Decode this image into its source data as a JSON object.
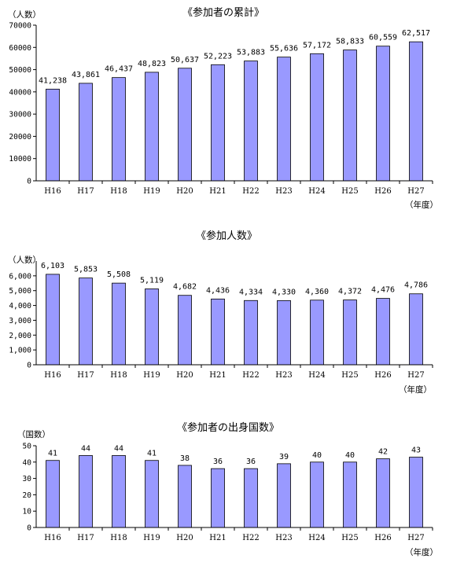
{
  "colors": {
    "bar_fill": "#9999ff",
    "bar_stroke": "#000000",
    "axis": "#000000"
  },
  "chart_data": [
    {
      "type": "bar",
      "title": "《参加者の累計》",
      "ylabel": "（人数）",
      "xlabel": "（年度）",
      "categories": [
        "H16",
        "H17",
        "H18",
        "H19",
        "H20",
        "H21",
        "H22",
        "H23",
        "H24",
        "H25",
        "H26",
        "H27"
      ],
      "values": [
        41238,
        43861,
        46437,
        48823,
        50637,
        52223,
        53883,
        55636,
        57172,
        58833,
        60559,
        62517
      ],
      "value_labels": [
        "41,238",
        "43,861",
        "46,437",
        "48,823",
        "50,637",
        "52,223",
        "53,883",
        "55,636",
        "57,172",
        "58,833",
        "60,559",
        "62,517"
      ],
      "ylim": [
        0,
        70000
      ],
      "yticks": [
        "0",
        "10000",
        "20000",
        "30000",
        "40000",
        "50000",
        "60000",
        "70000"
      ],
      "grid": false
    },
    {
      "type": "bar",
      "title": "《参加人数》",
      "ylabel": "（人数）",
      "xlabel": "（年度）",
      "categories": [
        "H16",
        "H17",
        "H18",
        "H19",
        "H20",
        "H21",
        "H22",
        "H23",
        "H24",
        "H25",
        "H26",
        "H27"
      ],
      "values": [
        6103,
        5853,
        5508,
        5119,
        4682,
        4436,
        4334,
        4330,
        4360,
        4372,
        4476,
        4786
      ],
      "value_labels": [
        "6,103",
        "5,853",
        "5,508",
        "5,119",
        "4,682",
        "4,436",
        "4,334",
        "4,330",
        "4,360",
        "4,372",
        "4,476",
        "4,786"
      ],
      "ylim": [
        0,
        7000
      ],
      "yticks": [
        "0",
        "1,000",
        "2,000",
        "3,000",
        "4,000",
        "5,000",
        "6,000"
      ],
      "grid": false
    },
    {
      "type": "bar",
      "title": "《参加者の出身国数》",
      "ylabel": "（国数）",
      "xlabel": "（年度）",
      "categories": [
        "H16",
        "H17",
        "H18",
        "H19",
        "H20",
        "H21",
        "H22",
        "H23",
        "H24",
        "H25",
        "H26",
        "H27"
      ],
      "values": [
        41,
        44,
        44,
        41,
        38,
        36,
        36,
        39,
        40,
        40,
        42,
        43
      ],
      "value_labels": [
        "41",
        "44",
        "44",
        "41",
        "38",
        "36",
        "36",
        "39",
        "40",
        "40",
        "42",
        "43"
      ],
      "ylim": [
        0,
        50
      ],
      "yticks": [
        "0",
        "10",
        "20",
        "30",
        "40",
        "50"
      ],
      "grid": false
    }
  ]
}
